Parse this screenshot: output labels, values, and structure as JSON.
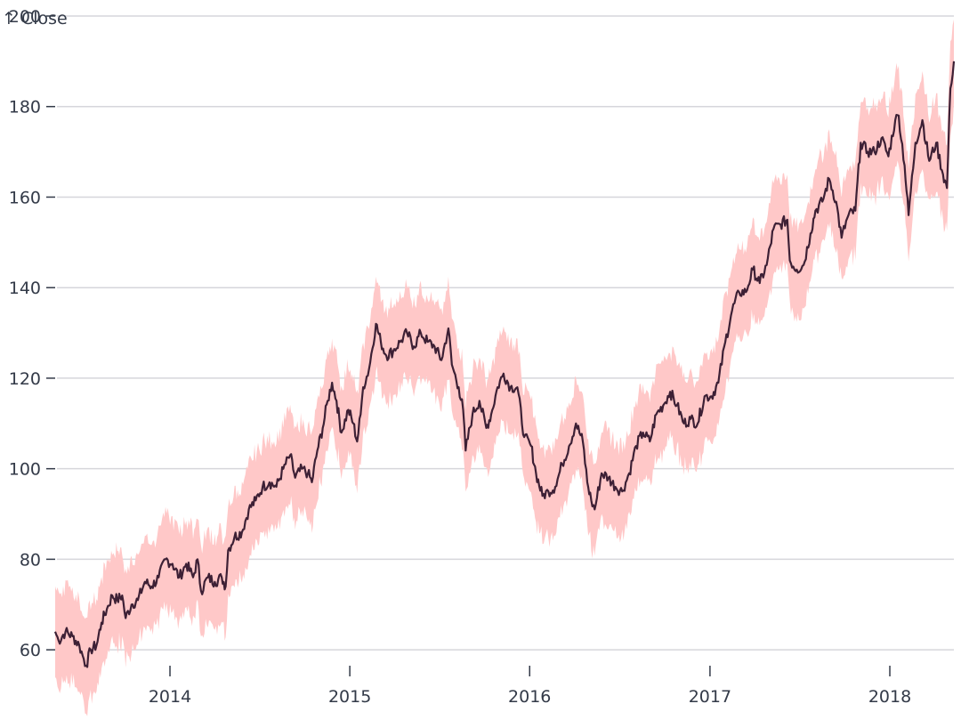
{
  "chart_data": {
    "type": "area",
    "subtype": "band-with-line",
    "title": "",
    "xlabel": "",
    "ylabel": "↑ Close",
    "xlim": [
      "2013-05-13",
      "2018-05-11"
    ],
    "ylim": [
      50,
      200
    ],
    "yticks": [
      60,
      80,
      100,
      120,
      140,
      160,
      180,
      200
    ],
    "xticks": [
      "2014",
      "2015",
      "2016",
      "2017",
      "2018"
    ],
    "xtick_dates": [
      "2014-01-01",
      "2015-01-01",
      "2016-01-01",
      "2017-01-01",
      "2018-01-01"
    ],
    "grid": true,
    "band_half_width": 10,
    "colors": {
      "line": "#3d2035",
      "band": "#ffc8c8",
      "grid": "#d6d6db",
      "text": "#333a48"
    },
    "series": [
      {
        "name": "Close",
        "points": [
          [
            "2013-05-13",
            64
          ],
          [
            "2013-05-20",
            62
          ],
          [
            "2013-06-03",
            64
          ],
          [
            "2013-06-17",
            63
          ],
          [
            "2013-07-01",
            61
          ],
          [
            "2013-07-10",
            58
          ],
          [
            "2013-07-15",
            56.5
          ],
          [
            "2013-07-24",
            60
          ],
          [
            "2013-08-05",
            61
          ],
          [
            "2013-08-15",
            66
          ],
          [
            "2013-08-26",
            69
          ],
          [
            "2013-09-06",
            72
          ],
          [
            "2013-09-16",
            71
          ],
          [
            "2013-09-26",
            72
          ],
          [
            "2013-10-03",
            67
          ],
          [
            "2013-10-15",
            70
          ],
          [
            "2013-10-28",
            71
          ],
          [
            "2013-11-11",
            75
          ],
          [
            "2013-11-25",
            74
          ],
          [
            "2013-12-09",
            76
          ],
          [
            "2013-12-23",
            80
          ],
          [
            "2014-01-06",
            79
          ],
          [
            "2014-01-20",
            76
          ],
          [
            "2014-02-03",
            79
          ],
          [
            "2014-02-17",
            76
          ],
          [
            "2014-02-26",
            80
          ],
          [
            "2014-03-05",
            73
          ],
          [
            "2014-03-19",
            76
          ],
          [
            "2014-04-02",
            75
          ],
          [
            "2014-04-16",
            76
          ],
          [
            "2014-04-24",
            74
          ],
          [
            "2014-04-29",
            82
          ],
          [
            "2014-05-12",
            85
          ],
          [
            "2014-05-27",
            86
          ],
          [
            "2014-06-10",
            91
          ],
          [
            "2014-06-24",
            93
          ],
          [
            "2014-07-08",
            96
          ],
          [
            "2014-07-22",
            97
          ],
          [
            "2014-08-05",
            96
          ],
          [
            "2014-08-19",
            100
          ],
          [
            "2014-09-02",
            103
          ],
          [
            "2014-09-12",
            98
          ],
          [
            "2014-09-26",
            100
          ],
          [
            "2014-10-08",
            99
          ],
          [
            "2014-10-16",
            97
          ],
          [
            "2014-10-27",
            104
          ],
          [
            "2014-11-07",
            109
          ],
          [
            "2014-11-17",
            115
          ],
          [
            "2014-11-26",
            119
          ],
          [
            "2014-12-05",
            115
          ],
          [
            "2014-12-15",
            108
          ],
          [
            "2014-12-29",
            113
          ],
          [
            "2015-01-08",
            110
          ],
          [
            "2015-01-16",
            106
          ],
          [
            "2015-01-23",
            112
          ],
          [
            "2015-01-28",
            118
          ],
          [
            "2015-02-09",
            122
          ],
          [
            "2015-02-23",
            132
          ],
          [
            "2015-03-05",
            128
          ],
          [
            "2015-03-16",
            125
          ],
          [
            "2015-03-30",
            126
          ],
          [
            "2015-04-13",
            128
          ],
          [
            "2015-04-27",
            130
          ],
          [
            "2015-05-11",
            127
          ],
          [
            "2015-05-25",
            130
          ],
          [
            "2015-06-08",
            128
          ],
          [
            "2015-06-22",
            127
          ],
          [
            "2015-07-06",
            124
          ],
          [
            "2015-07-20",
            131
          ],
          [
            "2015-07-27",
            123
          ],
          [
            "2015-08-10",
            118
          ],
          [
            "2015-08-19",
            113
          ],
          [
            "2015-08-24",
            104
          ],
          [
            "2015-09-07",
            112
          ],
          [
            "2015-09-21",
            115
          ],
          [
            "2015-10-05",
            109
          ],
          [
            "2015-10-15",
            112
          ],
          [
            "2015-10-28",
            118
          ],
          [
            "2015-11-09",
            121
          ],
          [
            "2015-11-23",
            118
          ],
          [
            "2015-12-07",
            118
          ],
          [
            "2015-12-21",
            107
          ],
          [
            "2016-01-04",
            105
          ],
          [
            "2016-01-14",
            99
          ],
          [
            "2016-01-27",
            94
          ],
          [
            "2016-02-08",
            95
          ],
          [
            "2016-02-22",
            96
          ],
          [
            "2016-03-07",
            101
          ],
          [
            "2016-03-21",
            105
          ],
          [
            "2016-04-04",
            110
          ],
          [
            "2016-04-18",
            106
          ],
          [
            "2016-04-27",
            97
          ],
          [
            "2016-05-05",
            93
          ],
          [
            "2016-05-12",
            91
          ],
          [
            "2016-05-26",
            99
          ],
          [
            "2016-06-09",
            98
          ],
          [
            "2016-06-23",
            96
          ],
          [
            "2016-07-07",
            95
          ],
          [
            "2016-07-21",
            99
          ],
          [
            "2016-08-04",
            105
          ],
          [
            "2016-08-18",
            108
          ],
          [
            "2016-09-01",
            106
          ],
          [
            "2016-09-14",
            112
          ],
          [
            "2016-09-28",
            114
          ],
          [
            "2016-10-12",
            117
          ],
          [
            "2016-10-26",
            114
          ],
          [
            "2016-11-09",
            110
          ],
          [
            "2016-11-23",
            111
          ],
          [
            "2016-12-07",
            110
          ],
          [
            "2016-12-21",
            116
          ],
          [
            "2017-01-04",
            116
          ],
          [
            "2017-01-18",
            119
          ],
          [
            "2017-02-01",
            128
          ],
          [
            "2017-02-15",
            135
          ],
          [
            "2017-03-01",
            139
          ],
          [
            "2017-03-15",
            139
          ],
          [
            "2017-03-29",
            144
          ],
          [
            "2017-04-12",
            141
          ],
          [
            "2017-04-26",
            145
          ],
          [
            "2017-05-10",
            153
          ],
          [
            "2017-05-24",
            154
          ],
          [
            "2017-06-07",
            155
          ],
          [
            "2017-06-12",
            146
          ],
          [
            "2017-06-26",
            144
          ],
          [
            "2017-07-10",
            145
          ],
          [
            "2017-07-24",
            152
          ],
          [
            "2017-08-03",
            157
          ],
          [
            "2017-08-17",
            159
          ],
          [
            "2017-08-31",
            164
          ],
          [
            "2017-09-14",
            159
          ],
          [
            "2017-09-25",
            151
          ],
          [
            "2017-10-09",
            156
          ],
          [
            "2017-10-23",
            157
          ],
          [
            "2017-11-03",
            172
          ],
          [
            "2017-11-17",
            170
          ],
          [
            "2017-12-01",
            170
          ],
          [
            "2017-12-15",
            173
          ],
          [
            "2017-12-29",
            169
          ],
          [
            "2018-01-12",
            177
          ],
          [
            "2018-01-19",
            178
          ],
          [
            "2018-01-31",
            167
          ],
          [
            "2018-02-08",
            156
          ],
          [
            "2018-02-22",
            172
          ],
          [
            "2018-03-08",
            177
          ],
          [
            "2018-03-22",
            168
          ],
          [
            "2018-04-05",
            172
          ],
          [
            "2018-04-19",
            165
          ],
          [
            "2018-04-27",
            162
          ],
          [
            "2018-05-04",
            184
          ],
          [
            "2018-05-11",
            190
          ]
        ]
      }
    ]
  }
}
